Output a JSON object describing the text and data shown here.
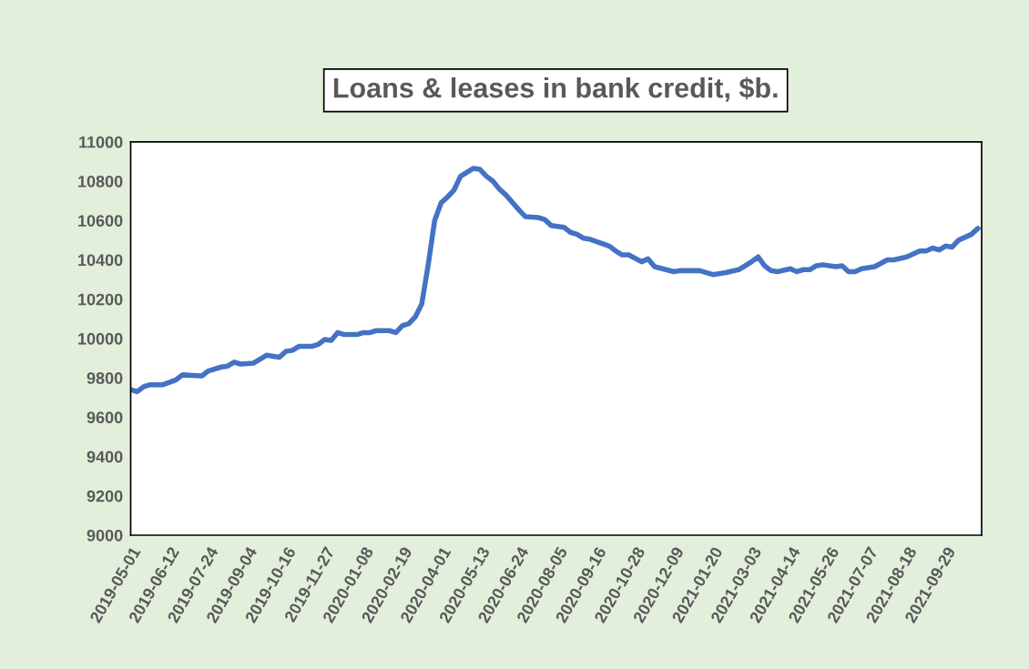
{
  "chart_data": {
    "type": "line",
    "title": "Loans & leases in bank credit, $b.",
    "x": [
      "2019-05-01",
      "2019-05-08",
      "2019-05-15",
      "2019-05-22",
      "2019-06-05",
      "2019-06-19",
      "2019-06-26",
      "2019-07-17",
      "2019-07-24",
      "2019-08-07",
      "2019-08-14",
      "2019-08-21",
      "2019-08-28",
      "2019-09-11",
      "2019-09-25",
      "2019-10-09",
      "2019-10-16",
      "2019-10-23",
      "2019-10-30",
      "2019-11-13",
      "2019-11-20",
      "2019-11-27",
      "2019-12-04",
      "2019-12-11",
      "2019-12-18",
      "2020-01-01",
      "2020-01-08",
      "2020-01-15",
      "2020-01-22",
      "2020-02-05",
      "2020-02-12",
      "2020-02-19",
      "2020-02-26",
      "2020-03-04",
      "2020-03-11",
      "2020-03-18",
      "2020-03-25",
      "2020-04-01",
      "2020-04-08",
      "2020-04-15",
      "2020-04-22",
      "2020-05-06",
      "2020-05-13",
      "2020-05-20",
      "2020-05-27",
      "2020-06-03",
      "2020-06-10",
      "2020-06-24",
      "2020-07-01",
      "2020-07-15",
      "2020-07-22",
      "2020-07-29",
      "2020-08-12",
      "2020-08-19",
      "2020-08-26",
      "2020-09-02",
      "2020-09-09",
      "2020-09-30",
      "2020-10-07",
      "2020-10-14",
      "2020-10-21",
      "2020-11-04",
      "2020-11-11",
      "2020-11-18",
      "2020-12-09",
      "2020-12-16",
      "2021-01-06",
      "2021-01-20",
      "2021-02-03",
      "2021-02-17",
      "2021-03-03",
      "2021-03-10",
      "2021-03-17",
      "2021-03-24",
      "2021-03-31",
      "2021-04-14",
      "2021-04-21",
      "2021-04-28",
      "2021-05-05",
      "2021-05-12",
      "2021-05-19",
      "2021-06-02",
      "2021-06-09",
      "2021-06-16",
      "2021-06-23",
      "2021-06-30",
      "2021-07-14",
      "2021-07-28",
      "2021-08-04",
      "2021-08-18",
      "2021-09-01",
      "2021-09-08",
      "2021-09-15",
      "2021-09-22",
      "2021-09-29",
      "2021-10-06",
      "2021-10-13",
      "2021-10-27",
      "2021-11-03"
    ],
    "series": [
      {
        "color": "#4472c4",
        "values": [
          9740,
          9730,
          9755,
          9765,
          9765,
          9790,
          9815,
          9810,
          9835,
          9855,
          9860,
          9880,
          9870,
          9875,
          9915,
          9905,
          9935,
          9940,
          9960,
          9960,
          9970,
          9995,
          9990,
          10030,
          10020,
          10020,
          10030,
          10030,
          10040,
          10040,
          10030,
          10065,
          10075,
          10110,
          10175,
          10375,
          10600,
          10690,
          10720,
          10755,
          10825,
          10865,
          10860,
          10825,
          10800,
          10760,
          10730,
          10655,
          10620,
          10615,
          10605,
          10575,
          10565,
          10540,
          10530,
          10510,
          10505,
          10470,
          10445,
          10425,
          10425,
          10390,
          10405,
          10365,
          10340,
          10345,
          10345,
          10325,
          10335,
          10350,
          10390,
          10415,
          10370,
          10345,
          10340,
          10355,
          10340,
          10350,
          10350,
          10370,
          10375,
          10365,
          10370,
          10340,
          10340,
          10355,
          10365,
          10400,
          10400,
          10415,
          10445,
          10445,
          10460,
          10450,
          10470,
          10465,
          10500,
          10530,
          10560
        ]
      }
    ],
    "xlim": [
      "2019-05-01",
      "2021-11-07"
    ],
    "xticks": [
      {
        "value": "2019-05-01",
        "label": "2019-05-01"
      },
      {
        "value": "2019-06-12",
        "label": "2019-06-12"
      },
      {
        "value": "2019-07-24",
        "label": "2019-07-24"
      },
      {
        "value": "2019-09-04",
        "label": "2019-09-04"
      },
      {
        "value": "2019-10-16",
        "label": "2019-10-16"
      },
      {
        "value": "2019-11-27",
        "label": "2019-11-27"
      },
      {
        "value": "2020-01-08",
        "label": "2020-01-08"
      },
      {
        "value": "2020-02-19",
        "label": "2020-02-19"
      },
      {
        "value": "2020-04-01",
        "label": "2020-04-01"
      },
      {
        "value": "2020-05-13",
        "label": "2020-05-13"
      },
      {
        "value": "2020-06-24",
        "label": "2020-06-24"
      },
      {
        "value": "2020-08-05",
        "label": "2020-08-05"
      },
      {
        "value": "2020-09-16",
        "label": "2020-09-16"
      },
      {
        "value": "2020-10-28",
        "label": "2020-10-28"
      },
      {
        "value": "2020-12-09",
        "label": "2020-12-09"
      },
      {
        "value": "2021-01-20",
        "label": "2021-01-20"
      },
      {
        "value": "2021-03-03",
        "label": "2021-03-03"
      },
      {
        "value": "2021-04-14",
        "label": "2021-04-14"
      },
      {
        "value": "2021-05-26",
        "label": "2021-05-26"
      },
      {
        "value": "2021-07-07",
        "label": "2021-07-07"
      },
      {
        "value": "2021-08-18",
        "label": "2021-08-18"
      },
      {
        "value": "2021-09-29",
        "label": "2021-09-29"
      }
    ],
    "ylim": [
      9000,
      11000
    ],
    "yticks": [
      9000,
      9200,
      9400,
      9600,
      9800,
      10000,
      10200,
      10400,
      10600,
      10800,
      11000
    ],
    "grid": false,
    "marker": "none",
    "line_style": "solid"
  }
}
